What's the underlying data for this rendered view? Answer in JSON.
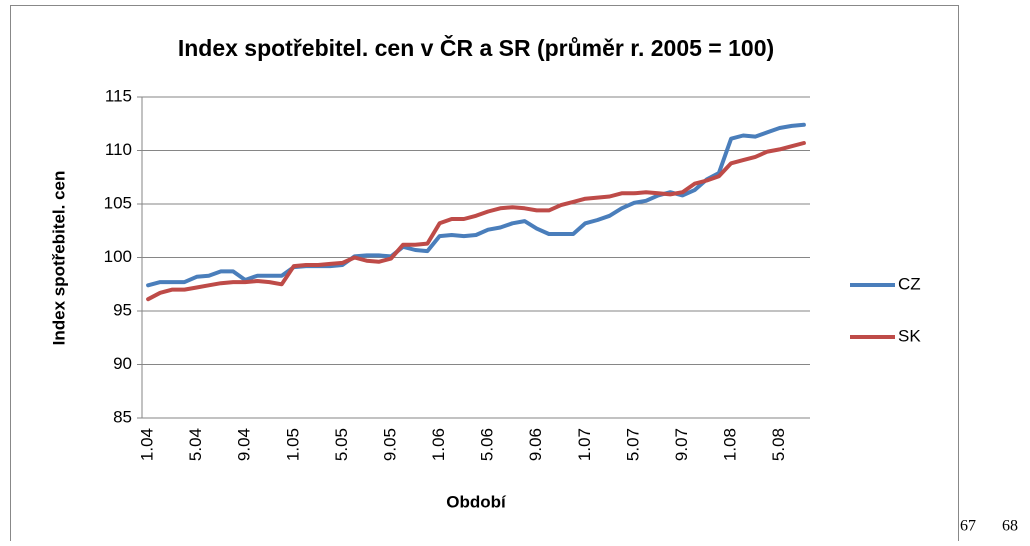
{
  "chart_data": {
    "type": "line",
    "title": "Index spotřebitel. cen v ČR a SR (průměr r. 2005 = 100)",
    "y_label": "Index spotřebitel. cen",
    "x_label": "Období",
    "categories": [
      "1.04",
      null,
      null,
      null,
      "5.04",
      null,
      null,
      null,
      "9.04",
      null,
      null,
      null,
      "1.05",
      null,
      null,
      null,
      "5.05",
      null,
      null,
      null,
      "9.05",
      null,
      null,
      null,
      "1.06",
      null,
      null,
      null,
      "5.06",
      null,
      null,
      null,
      "9.06",
      null,
      null,
      null,
      "1.07",
      null,
      null,
      null,
      "5.07",
      null,
      null,
      null,
      "9.07",
      null,
      null,
      null,
      "1.08",
      null,
      null,
      null,
      "5.08",
      null,
      null
    ],
    "series": [
      {
        "name": "CZ",
        "color": "#4a7ebb",
        "values": [
          97.4,
          97.7,
          97.7,
          97.7,
          98.2,
          98.3,
          98.7,
          98.7,
          97.9,
          98.3,
          98.3,
          98.3,
          99.1,
          99.2,
          99.2,
          99.2,
          99.3,
          100.1,
          100.2,
          100.2,
          100.1,
          101.0,
          100.7,
          100.6,
          102.0,
          102.1,
          102.0,
          102.1,
          102.6,
          102.8,
          103.2,
          103.4,
          102.7,
          102.2,
          102.2,
          102.2,
          103.2,
          103.5,
          103.9,
          104.6,
          105.1,
          105.3,
          105.8,
          106.1,
          105.8,
          106.3,
          107.3,
          107.9,
          111.1,
          111.4,
          111.3,
          111.7,
          112.1,
          112.3,
          112.4
        ]
      },
      {
        "name": "SK",
        "color": "#be4b48",
        "values": [
          96.1,
          96.7,
          97.0,
          97.0,
          97.2,
          97.4,
          97.6,
          97.7,
          97.7,
          97.8,
          97.7,
          97.5,
          99.2,
          99.3,
          99.3,
          99.4,
          99.5,
          100.0,
          99.7,
          99.6,
          99.9,
          101.2,
          101.2,
          101.3,
          103.2,
          103.6,
          103.6,
          103.9,
          104.3,
          104.6,
          104.7,
          104.6,
          104.4,
          104.4,
          104.9,
          105.2,
          105.5,
          105.6,
          105.7,
          106.0,
          106.0,
          106.1,
          106.0,
          105.9,
          106.1,
          106.9,
          107.2,
          107.6,
          108.8,
          109.1,
          109.4,
          109.9,
          110.1,
          110.4,
          110.7
        ]
      }
    ],
    "ylim": [
      85,
      115
    ],
    "yticks": [
      85,
      90,
      95,
      100,
      105,
      110,
      115
    ],
    "grid": true,
    "legend": "right"
  },
  "page_numbers": [
    "67",
    "68"
  ]
}
